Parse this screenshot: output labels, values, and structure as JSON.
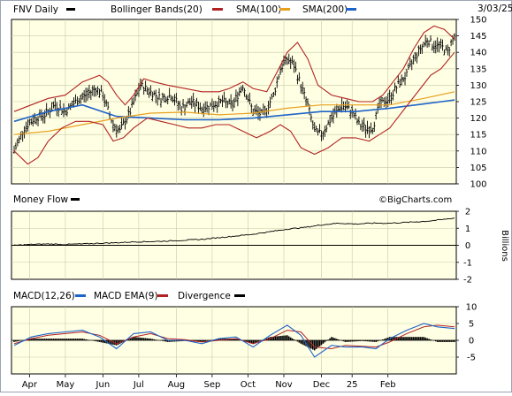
{
  "chart_data": [
    {
      "type": "candlestick",
      "title": "FNV Daily",
      "date": "3/03/25",
      "legend": [
        {
          "label": "Bollinger Bands(20)",
          "color": "#b22222"
        },
        {
          "label": "SMA(100)",
          "color": "#b22222"
        },
        {
          "label": "SMA(200)",
          "color": "#1e63c9"
        }
      ],
      "watermark": "©BigCharts.com",
      "ylim": [
        100,
        150
      ],
      "yticks": [
        "150",
        "145",
        "140",
        "135",
        "130",
        "125",
        "120",
        "115",
        "110",
        "105",
        "100"
      ],
      "price_path": [
        [
          0,
          110
        ],
        [
          6,
          117
        ],
        [
          12,
          120
        ],
        [
          18,
          121
        ],
        [
          24,
          124
        ],
        [
          30,
          122
        ],
        [
          36,
          125
        ],
        [
          42,
          127
        ],
        [
          48,
          129
        ],
        [
          52,
          127
        ],
        [
          58,
          118
        ],
        [
          62,
          116
        ],
        [
          68,
          122
        ],
        [
          74,
          130
        ],
        [
          80,
          128
        ],
        [
          86,
          126
        ],
        [
          92,
          127
        ],
        [
          98,
          123
        ],
        [
          104,
          125
        ],
        [
          110,
          123
        ],
        [
          116,
          124
        ],
        [
          122,
          125
        ],
        [
          128,
          124
        ],
        [
          134,
          130
        ],
        [
          140,
          122
        ],
        [
          146,
          121
        ],
        [
          152,
          127
        ],
        [
          156,
          135
        ],
        [
          160,
          138
        ],
        [
          164,
          136
        ],
        [
          168,
          130
        ],
        [
          172,
          124
        ],
        [
          176,
          116
        ],
        [
          180,
          115
        ],
        [
          186,
          120
        ],
        [
          192,
          124
        ],
        [
          198,
          122
        ],
        [
          202,
          118
        ],
        [
          206,
          117
        ],
        [
          210,
          117
        ],
        [
          214,
          124
        ],
        [
          220,
          126
        ],
        [
          226,
          131
        ],
        [
          230,
          133
        ],
        [
          234,
          138
        ],
        [
          238,
          141
        ],
        [
          242,
          144
        ],
        [
          246,
          142
        ],
        [
          250,
          142
        ],
        [
          254,
          140
        ],
        [
          256,
          143
        ],
        [
          258,
          145
        ]
      ],
      "bb_upper": [
        [
          0,
          122
        ],
        [
          10,
          124
        ],
        [
          20,
          126
        ],
        [
          30,
          127
        ],
        [
          40,
          131
        ],
        [
          50,
          133
        ],
        [
          55,
          131
        ],
        [
          60,
          127
        ],
        [
          65,
          124
        ],
        [
          70,
          127
        ],
        [
          76,
          132
        ],
        [
          82,
          131
        ],
        [
          90,
          130
        ],
        [
          100,
          129
        ],
        [
          110,
          128
        ],
        [
          120,
          128
        ],
        [
          126,
          129
        ],
        [
          134,
          131
        ],
        [
          140,
          129
        ],
        [
          148,
          128
        ],
        [
          154,
          134
        ],
        [
          160,
          140
        ],
        [
          166,
          143
        ],
        [
          172,
          138
        ],
        [
          178,
          130
        ],
        [
          186,
          127
        ],
        [
          194,
          126
        ],
        [
          202,
          125
        ],
        [
          210,
          125
        ],
        [
          216,
          127
        ],
        [
          222,
          131
        ],
        [
          228,
          135
        ],
        [
          234,
          141
        ],
        [
          240,
          146
        ],
        [
          246,
          148
        ],
        [
          252,
          147
        ],
        [
          258,
          144
        ]
      ],
      "bb_lower": [
        [
          0,
          110
        ],
        [
          8,
          106
        ],
        [
          14,
          108
        ],
        [
          20,
          113
        ],
        [
          28,
          117
        ],
        [
          36,
          119
        ],
        [
          44,
          119
        ],
        [
          52,
          118
        ],
        [
          58,
          113
        ],
        [
          64,
          114
        ],
        [
          70,
          117
        ],
        [
          78,
          120
        ],
        [
          86,
          119
        ],
        [
          94,
          118
        ],
        [
          102,
          117
        ],
        [
          110,
          117
        ],
        [
          118,
          118
        ],
        [
          126,
          118
        ],
        [
          134,
          116
        ],
        [
          142,
          114
        ],
        [
          150,
          116
        ],
        [
          156,
          118
        ],
        [
          162,
          116
        ],
        [
          168,
          111
        ],
        [
          176,
          109
        ],
        [
          184,
          111
        ],
        [
          192,
          114
        ],
        [
          200,
          114
        ],
        [
          208,
          113
        ],
        [
          214,
          115
        ],
        [
          220,
          117
        ],
        [
          226,
          121
        ],
        [
          232,
          125
        ],
        [
          238,
          129
        ],
        [
          244,
          133
        ],
        [
          250,
          135
        ],
        [
          258,
          140
        ]
      ],
      "sma_100": [
        [
          0,
          115
        ],
        [
          20,
          116
        ],
        [
          40,
          118
        ],
        [
          60,
          120
        ],
        [
          80,
          121.5
        ],
        [
          100,
          121.8
        ],
        [
          120,
          121
        ],
        [
          140,
          121.5
        ],
        [
          160,
          123
        ],
        [
          180,
          124
        ],
        [
          200,
          124
        ],
        [
          220,
          124
        ],
        [
          240,
          126
        ],
        [
          258,
          128
        ]
      ],
      "sma_200": [
        [
          0,
          119
        ],
        [
          20,
          122
        ],
        [
          40,
          124
        ],
        [
          60,
          120.5
        ],
        [
          80,
          120
        ],
        [
          100,
          119.5
        ],
        [
          120,
          119.5
        ],
        [
          140,
          120
        ],
        [
          160,
          121
        ],
        [
          180,
          122
        ],
        [
          200,
          122
        ],
        [
          220,
          123
        ],
        [
          240,
          124.3
        ],
        [
          258,
          125.5
        ]
      ]
    },
    {
      "type": "line",
      "title": "Money Flow",
      "ylabel": "Billions",
      "ylim": [
        -2,
        2
      ],
      "yticks": [
        "2",
        "1",
        "0",
        "-1",
        "-2"
      ],
      "series": [
        {
          "values": [
            [
              0,
              0.0
            ],
            [
              10,
              0.05
            ],
            [
              20,
              0.08
            ],
            [
              30,
              0.05
            ],
            [
              40,
              0.08
            ],
            [
              50,
              0.12
            ],
            [
              60,
              0.15
            ],
            [
              70,
              0.2
            ],
            [
              80,
              0.22
            ],
            [
              90,
              0.25
            ],
            [
              100,
              0.3
            ],
            [
              110,
              0.35
            ],
            [
              120,
              0.45
            ],
            [
              130,
              0.55
            ],
            [
              140,
              0.65
            ],
            [
              150,
              0.8
            ],
            [
              160,
              0.95
            ],
            [
              170,
              1.05
            ],
            [
              180,
              1.2
            ],
            [
              190,
              1.3
            ],
            [
              200,
              1.25
            ],
            [
              210,
              1.3
            ],
            [
              220,
              1.3
            ],
            [
              230,
              1.35
            ],
            [
              240,
              1.4
            ],
            [
              250,
              1.5
            ],
            [
              258,
              1.6
            ]
          ]
        }
      ]
    },
    {
      "type": "line",
      "title": "MACD(12,26)",
      "legend": [
        {
          "label": "MACD EMA(9)",
          "color": "#1e63c9"
        },
        {
          "label": "Divergence",
          "color": "#000000"
        }
      ],
      "ylim": [
        -10,
        10
      ],
      "yticks": [
        "10",
        "5",
        "0",
        "-5"
      ],
      "macd": [
        [
          0,
          -1.5
        ],
        [
          10,
          1
        ],
        [
          20,
          2
        ],
        [
          30,
          2.5
        ],
        [
          40,
          3
        ],
        [
          50,
          1
        ],
        [
          60,
          -2.5
        ],
        [
          70,
          2
        ],
        [
          80,
          2.5
        ],
        [
          90,
          0
        ],
        [
          100,
          0
        ],
        [
          110,
          -1
        ],
        [
          120,
          0.5
        ],
        [
          130,
          1
        ],
        [
          140,
          -2
        ],
        [
          150,
          1.5
        ],
        [
          160,
          4.5
        ],
        [
          168,
          1.5
        ],
        [
          176,
          -5
        ],
        [
          186,
          -1.5
        ],
        [
          194,
          -2
        ],
        [
          204,
          -2
        ],
        [
          212,
          -2.5
        ],
        [
          220,
          0.5
        ],
        [
          230,
          3
        ],
        [
          240,
          5
        ],
        [
          248,
          4
        ],
        [
          258,
          3.5
        ]
      ],
      "signal": [
        [
          0,
          -1
        ],
        [
          10,
          0.5
        ],
        [
          20,
          1.5
        ],
        [
          30,
          2
        ],
        [
          40,
          2.5
        ],
        [
          50,
          1.5
        ],
        [
          60,
          -1
        ],
        [
          70,
          1
        ],
        [
          80,
          2
        ],
        [
          90,
          0.5
        ],
        [
          100,
          0.2
        ],
        [
          110,
          -0.5
        ],
        [
          120,
          0
        ],
        [
          130,
          0.5
        ],
        [
          140,
          -1
        ],
        [
          150,
          0.5
        ],
        [
          160,
          3
        ],
        [
          168,
          2.5
        ],
        [
          176,
          -2
        ],
        [
          186,
          -2.5
        ],
        [
          194,
          -1.5
        ],
        [
          204,
          -1.8
        ],
        [
          212,
          -2
        ],
        [
          220,
          -0.5
        ],
        [
          230,
          2
        ],
        [
          240,
          4
        ],
        [
          248,
          4.5
        ],
        [
          258,
          4
        ]
      ]
    }
  ],
  "x_axis": {
    "months": [
      "Apr",
      "May",
      "Jun",
      "Jul",
      "Aug",
      "Sep",
      "Oct",
      "Nov",
      "Dec",
      "25",
      "Feb"
    ]
  }
}
